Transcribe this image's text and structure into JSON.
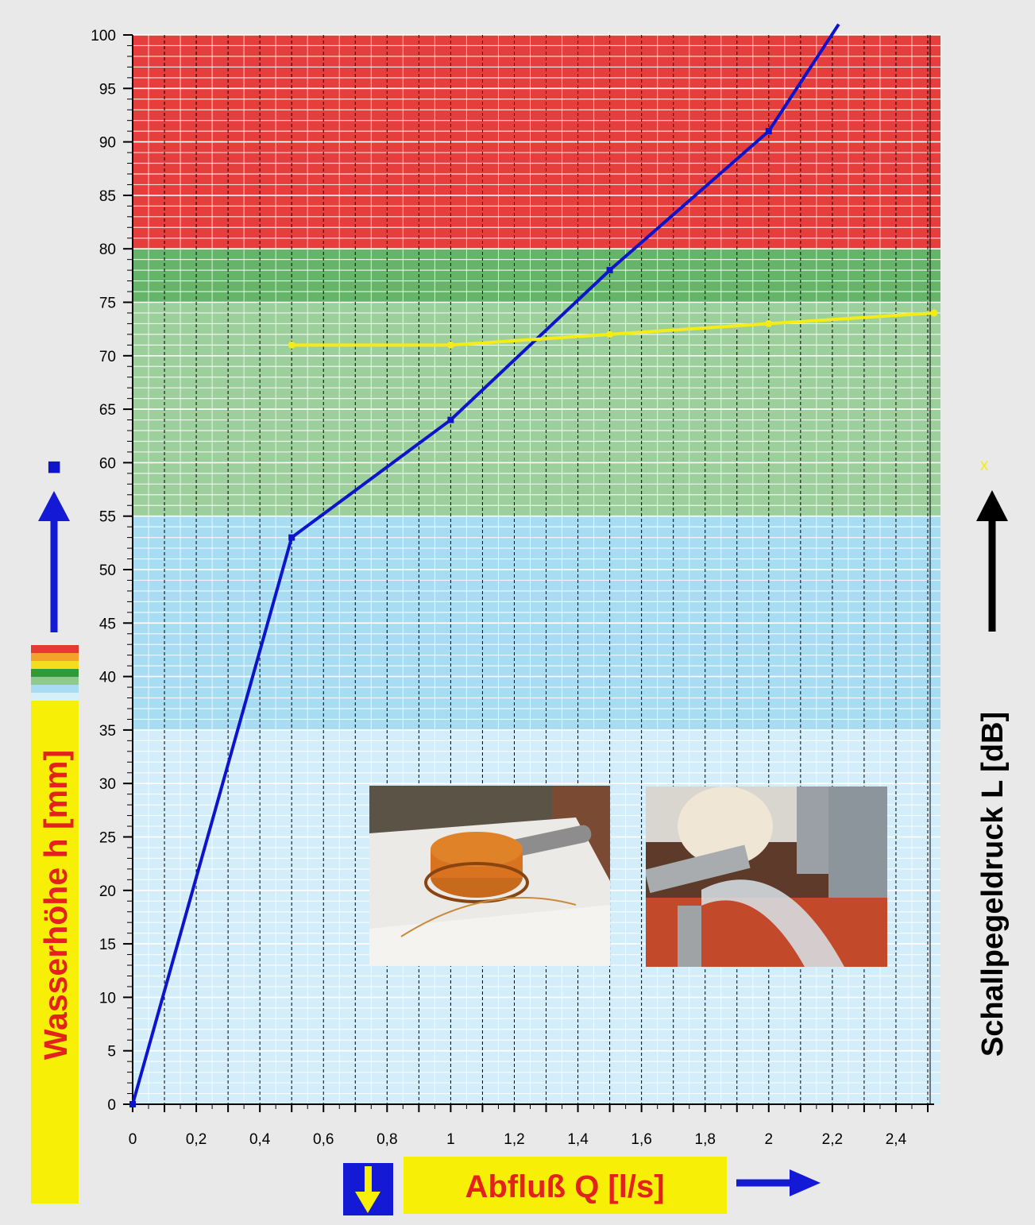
{
  "chart_data": {
    "type": "line",
    "xlabel": "Abfluß Q [l/s]",
    "ylabel": "Wasserhöhe h [mm]",
    "y2label": "Schallpegeldruck L [dB]",
    "xlim": [
      0,
      2.52
    ],
    "ylim": [
      0,
      100
    ],
    "x_ticks": [
      "0",
      "0,2",
      "0,4",
      "0,6",
      "0,8",
      "1",
      "1,2",
      "1,4",
      "1,6",
      "1,8",
      "2",
      "2,2",
      "2,4"
    ],
    "x_tick_values": [
      0,
      0.2,
      0.4,
      0.6,
      0.8,
      1,
      1.2,
      1.4,
      1.6,
      1.8,
      2,
      2.2,
      2.4
    ],
    "y_ticks": [
      "0",
      "5",
      "10",
      "15",
      "20",
      "25",
      "30",
      "35",
      "40",
      "45",
      "50",
      "55",
      "60",
      "65",
      "70",
      "75",
      "80",
      "85",
      "90",
      "95",
      "100"
    ],
    "y_tick_values": [
      0,
      5,
      10,
      15,
      20,
      25,
      30,
      35,
      40,
      45,
      50,
      55,
      60,
      65,
      70,
      75,
      80,
      85,
      90,
      95,
      100
    ],
    "grid": true,
    "bands": [
      {
        "from": 0,
        "to": 35,
        "color": "#d3eefa"
      },
      {
        "from": 35,
        "to": 55,
        "color": "#a7dcf3"
      },
      {
        "from": 55,
        "to": 75,
        "color": "#9dcf9d"
      },
      {
        "from": 75,
        "to": 80,
        "color": "#66b46a"
      },
      {
        "from": 80,
        "to": 100,
        "color": "#e63e3c"
      }
    ],
    "series": [
      {
        "marker": "■",
        "color": "#0d14c9",
        "x": [
          0,
          0.5,
          1,
          1.5,
          2,
          2.22
        ],
        "y": [
          0,
          53,
          64,
          78,
          91,
          101
        ]
      },
      {
        "marker": "x",
        "color": "#f5ec16",
        "x": [
          0.5,
          1,
          1.5,
          2,
          2.52
        ],
        "y": [
          71,
          71,
          72,
          73,
          74
        ]
      }
    ]
  },
  "legend_swatch_colors": [
    "#e33b2f",
    "#f4a22b",
    "#f4dc1e",
    "#2f9a3a",
    "#8fc98f",
    "#a8dcf2",
    "#d6f0fb"
  ],
  "colors": {
    "label_bg": "#f7ef06",
    "label_text": "#e3221b",
    "arrow_blue": "#1419d6",
    "arrow_black": "#000000"
  },
  "icons": {
    "down_arrow": "yellow-down-arrow-icon"
  }
}
